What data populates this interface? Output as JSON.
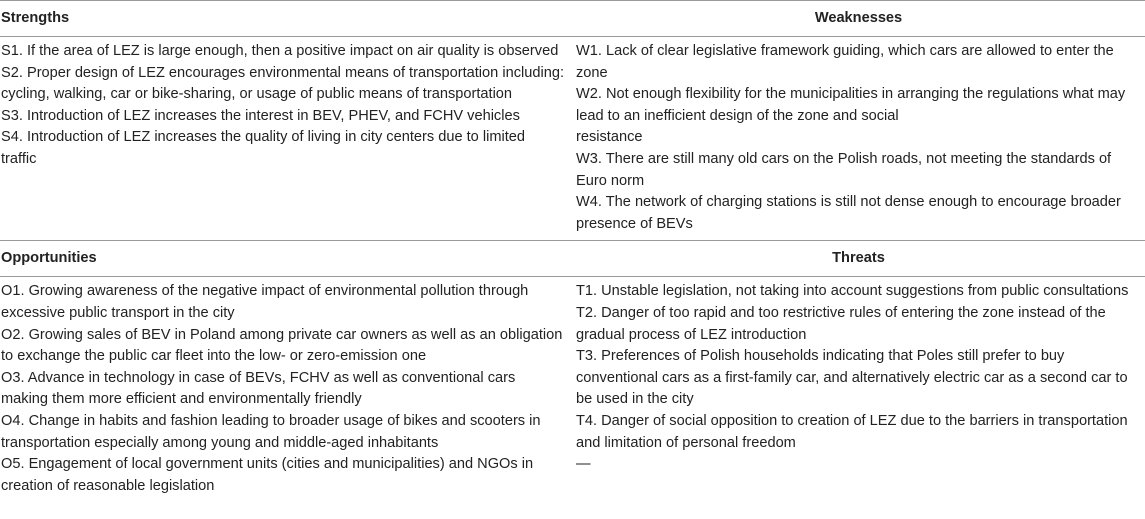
{
  "table": {
    "headers": {
      "strengths": "Strengths",
      "weaknesses": "Weaknesses",
      "opportunities": "Opportunities",
      "threats": "Threats"
    },
    "strengths": [
      "S1. If the area of LEZ is large enough, then a positive impact on air quality is observed",
      "S2. Proper design of LEZ encourages environmental means of transportation including: cycling, walking, car or bike-sharing, or usage of public means of transportation",
      "S3. Introduction of LEZ increases the interest in BEV, PHEV, and FCHV vehicles",
      "S4. Introduction of LEZ increases the quality of living in city centers due to limited traffic"
    ],
    "weaknesses": [
      "W1. Lack of clear legislative framework guiding, which cars are allowed to enter the zone",
      "W2. Not enough flexibility for the municipalities in arranging the regulations what may lead to an inefficient design of the zone and social",
      "resistance",
      "W3. There are still many old cars on the Polish roads, not meeting the standards of Euro norm",
      "W4. The network of charging stations is still not dense enough to encourage broader presence of BEVs"
    ],
    "opportunities": [
      "O1. Growing awareness of the negative impact of environmental pollution through excessive public transport in the city",
      "O2. Growing sales of BEV in Poland among private car owners as well as an obligation to exchange the public car fleet into the low- or zero-emission one",
      "O3. Advance in technology in case of BEVs, FCHV as well as conventional cars making them more efficient and environmentally friendly",
      "O4. Change in habits and fashion leading to broader usage of bikes and scooters in transportation especially among young and middle-aged inhabitants",
      "O5. Engagement of local government units (cities and municipalities) and NGOs in creation of reasonable legislation"
    ],
    "threats": [
      "T1. Unstable legislation, not taking into account suggestions from public consultations",
      "T2. Danger of too rapid and too restrictive rules of entering the zone instead of the gradual process of LEZ introduction",
      "T3. Preferences of Polish households indicating that Poles still prefer to buy conventional cars as a first-family car, and alternatively electric car as a second car to be used in the city",
      "T4. Danger of social opposition to creation of LEZ due to the barriers in transportation and limitation of personal freedom",
      "—"
    ]
  }
}
